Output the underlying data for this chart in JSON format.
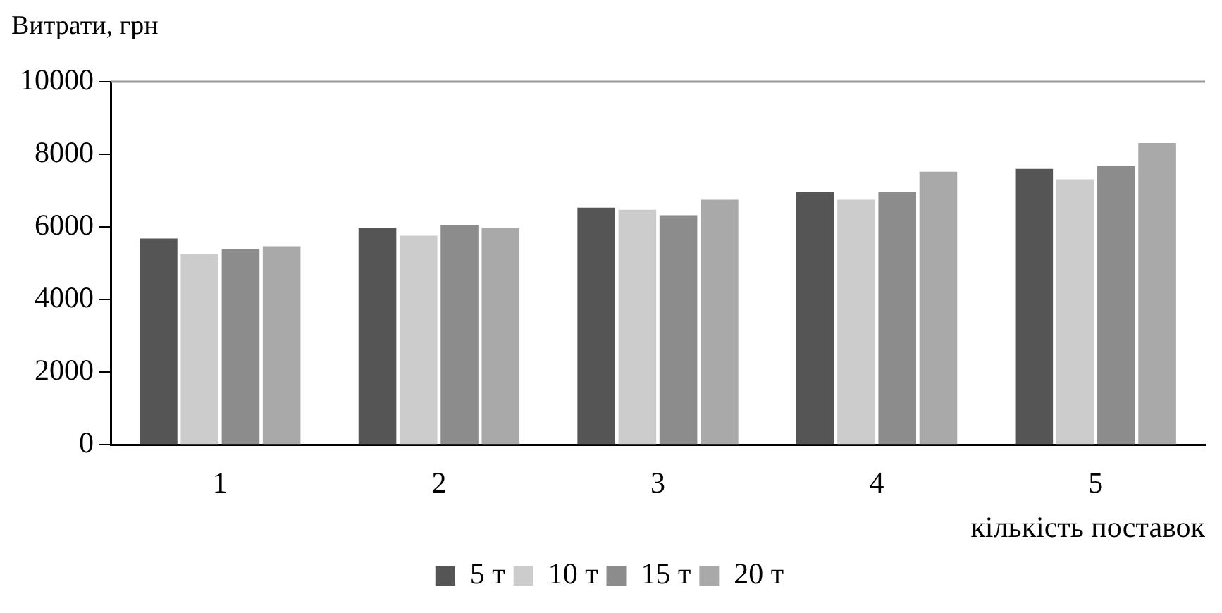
{
  "chart_data": {
    "type": "bar",
    "ylabel": "Витрати, грн",
    "xlabel": "кількість поставок",
    "categories": [
      "1",
      "2",
      "3",
      "4",
      "5"
    ],
    "series": [
      {
        "name": "5 т",
        "color": "#555555",
        "values": [
          5680,
          5980,
          6530,
          6960,
          7600
        ]
      },
      {
        "name": "10 т",
        "color": "#cccccc",
        "values": [
          5250,
          5760,
          6470,
          6750,
          7310
        ]
      },
      {
        "name": "15 т",
        "color": "#8c8c8c",
        "values": [
          5390,
          6040,
          6320,
          6960,
          7670
        ]
      },
      {
        "name": "20 т",
        "color": "#a9a9a9",
        "values": [
          5470,
          5980,
          6750,
          7520,
          8310
        ]
      }
    ],
    "ylim": [
      0,
      10000
    ],
    "yticks": [
      0,
      2000,
      4000,
      6000,
      8000,
      10000
    ],
    "grid": false,
    "legend": "bottom"
  }
}
